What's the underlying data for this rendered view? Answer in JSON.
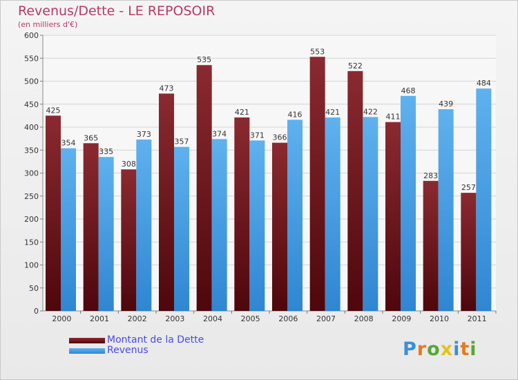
{
  "header": {
    "title": "Revenus/Dette - LE REPOSOIR",
    "subtitle": "(en milliers d'€)"
  },
  "colors": {
    "dette": "#6e1016",
    "revenus": "#3d97e0",
    "title": "#b83a63",
    "legend_text": "#4a4ae8"
  },
  "legend": {
    "items": [
      {
        "label": "Montant de la Dette",
        "color": "#6e1016"
      },
      {
        "label": "Revenus",
        "color": "#3d97e0"
      }
    ]
  },
  "logo": {
    "text": "Proxiti"
  },
  "chart_data": {
    "type": "bar",
    "title": "Revenus/Dette - LE REPOSOIR",
    "subtitle": "(en milliers d'€)",
    "xlabel": "",
    "ylabel": "",
    "ylim": [
      0,
      600
    ],
    "ytick_step": 50,
    "grid": "horizontal",
    "legend_position": "bottom-left",
    "categories": [
      "2000",
      "2001",
      "2002",
      "2003",
      "2004",
      "2005",
      "2006",
      "2007",
      "2008",
      "2009",
      "2010",
      "2011"
    ],
    "series": [
      {
        "name": "Montant de la Dette",
        "values": [
          425,
          365,
          308,
          473,
          535,
          421,
          366,
          553,
          522,
          411,
          283,
          257
        ]
      },
      {
        "name": "Revenus",
        "values": [
          354,
          335,
          373,
          357,
          374,
          371,
          416,
          421,
          422,
          468,
          439,
          484
        ]
      }
    ]
  }
}
